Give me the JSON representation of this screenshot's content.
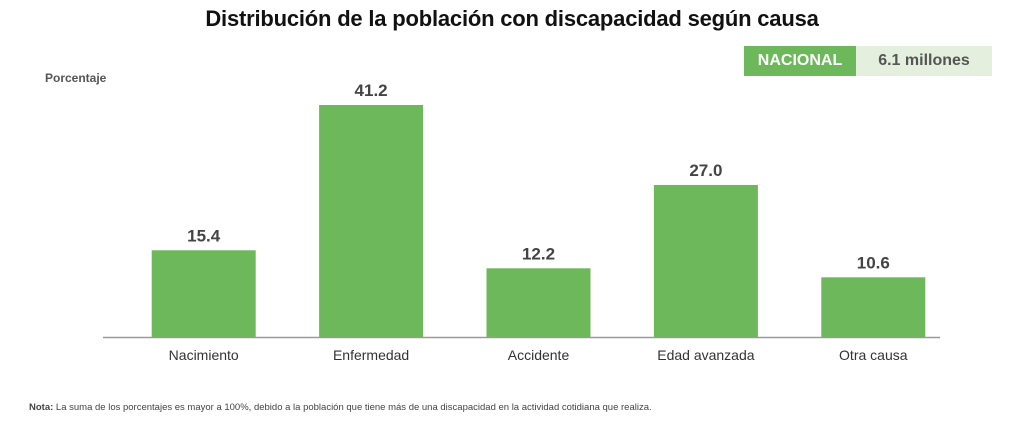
{
  "chart_data": {
    "type": "bar",
    "title": "Distribución de la población con discapacidad según causa",
    "xlabel": "",
    "ylabel": "Porcentaje",
    "categories": [
      "Nacimiento",
      "Enfermedad",
      "Accidente",
      "Edad avanzada",
      "Otra causa"
    ],
    "values": [
      15.4,
      41.2,
      12.2,
      27.0,
      10.6
    ],
    "value_labels": [
      "15.4",
      "41.2",
      "12.2",
      "27.0",
      "10.6"
    ],
    "ylim": [
      0,
      41.2
    ],
    "grid": false,
    "bar_color": "#6cb85a"
  },
  "badge": {
    "scope": "NACIONAL",
    "value": "6.1 millones"
  },
  "note": {
    "label": "Nota:",
    "text": " La suma de los porcentajes es mayor a 100%, debido a la población que tiene más de una discapacidad en la actividad cotidiana que realiza."
  },
  "colors": {
    "bar": "#6cb85a",
    "badge_dark": "#6cb85a",
    "badge_light": "#e4f0dd",
    "axis": "#9a9a9a"
  }
}
